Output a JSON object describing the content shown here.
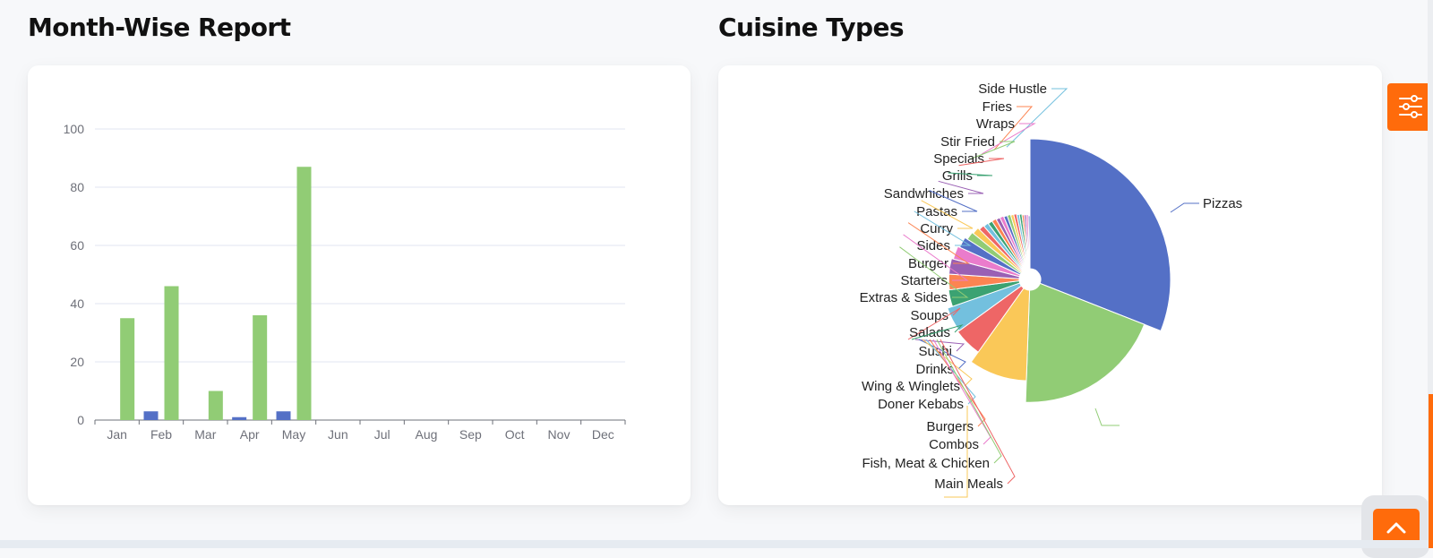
{
  "sections": {
    "month_report_title": "Month-Wise Report",
    "cuisine_title": "Cuisine Types"
  },
  "colors": {
    "accent": "#ff6b0b",
    "green": "#91cc75",
    "blue": "#5470c6",
    "palette": [
      "#5470c6",
      "#91cc75",
      "#fac858",
      "#ee6666",
      "#73c0de",
      "#3ba272",
      "#fc8452",
      "#9a60b4",
      "#ea7ccc"
    ]
  },
  "icons": {
    "settings": "sliders-icon",
    "scroll_top": "chevron-up-icon"
  },
  "chart_data": [
    {
      "type": "bar",
      "title": "Month-Wise Report",
      "categories": [
        "Jan",
        "Feb",
        "Mar",
        "Apr",
        "May",
        "Jun",
        "Jul",
        "Aug",
        "Sep",
        "Oct",
        "Nov",
        "Dec"
      ],
      "series": [
        {
          "values": [
            0,
            3,
            0,
            1,
            3,
            0,
            0,
            0,
            0,
            0,
            0,
            0
          ]
        },
        {
          "values": [
            35,
            46,
            10,
            36,
            87,
            0,
            0,
            0,
            0,
            0,
            0,
            0
          ]
        }
      ],
      "yticks": [
        0,
        20,
        40,
        60,
        80,
        100
      ],
      "ylim": [
        0,
        100
      ],
      "grid": true
    },
    {
      "type": "pie",
      "title": "Cuisine Types",
      "slices": [
        {
          "label": "Pizzas",
          "value": 30
        },
        {
          "label": "",
          "value": 19
        },
        {
          "label": "",
          "value": 9
        },
        {
          "label": "",
          "value": 5
        },
        {
          "label": "",
          "value": 4.5
        },
        {
          "label": "",
          "value": 3.2
        },
        {
          "label": "",
          "value": 3
        },
        {
          "label": "",
          "value": 3
        },
        {
          "label": "",
          "value": 2.6
        },
        {
          "label": "",
          "value": 2.2
        },
        {
          "label": "",
          "value": 1.7
        },
        {
          "label": "",
          "value": 1.5
        },
        {
          "label": "",
          "value": 1.2
        },
        {
          "label": "",
          "value": 1.1
        },
        {
          "label": "",
          "value": 1
        },
        {
          "label": "",
          "value": 1
        },
        {
          "label": "",
          "value": 0.9
        },
        {
          "label": "",
          "value": 0.9
        },
        {
          "label": "",
          "value": 0.8
        },
        {
          "label": "",
          "value": 0.8
        },
        {
          "label": "",
          "value": 0.7
        },
        {
          "label": "",
          "value": 0.7
        },
        {
          "label": "",
          "value": 0.6
        },
        {
          "label": "",
          "value": 0.6
        },
        {
          "label": "",
          "value": 0.5
        },
        {
          "label": "",
          "value": 0.5
        },
        {
          "label": "",
          "value": 0.5
        },
        {
          "label": "",
          "value": 0.4
        }
      ],
      "labels": [
        "Side Hustle",
        "Fries",
        "Wraps",
        "Stir Fried",
        "Specials",
        "Grills",
        "Sandwhiches",
        "Pastas",
        "Curry",
        "Sides",
        "Burger",
        "Starters",
        "Extras & Sides",
        "Soups",
        "Salads",
        "Sushi",
        "Drinks",
        "Wing & Winglets",
        "Doner Kebabs",
        "Burgers",
        "Combos",
        "Fish, Meat & Chicken",
        "Main Meals"
      ]
    }
  ]
}
